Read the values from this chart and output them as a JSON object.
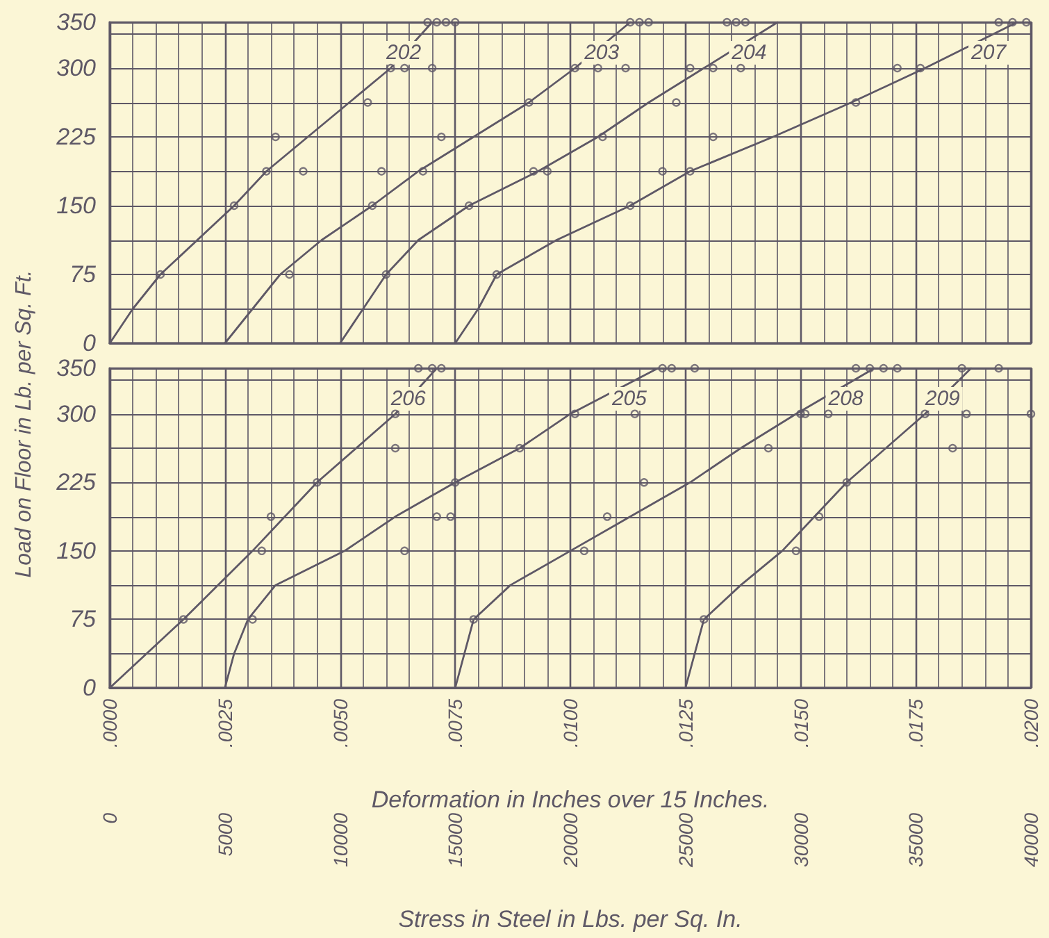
{
  "chart_data": [
    {
      "type": "line",
      "ylabel": "Load on Floor in Lb. per Sq. Ft.",
      "xlim": [
        0,
        0.02
      ],
      "xticks": [
        {
          "value": 0,
          "label": null
        },
        {
          "value": 0.0025,
          "label": null
        },
        {
          "value": 0.005,
          "label": null
        },
        {
          "value": 0.0075,
          "label": null
        },
        {
          "value": 0.01,
          "label": null
        },
        {
          "value": 0.0125,
          "label": null
        },
        {
          "value": 0.015,
          "label": null
        },
        {
          "value": 0.0175,
          "label": null
        },
        {
          "value": 0.02,
          "label": null
        }
      ],
      "ylim": [
        0,
        350
      ],
      "yticks": [
        0,
        75,
        150,
        225,
        300,
        350
      ],
      "tick_labels": "y",
      "grid": true,
      "legend": false,
      "series": [
        {
          "name": "202",
          "marker": "none",
          "color": "#5e5866",
          "x": [
            0,
            0.0005,
            0.0011,
            0.0027,
            0.0034,
            0.0043,
            0.0061,
            0.007
          ],
          "values": [
            0,
            37.5,
            75,
            150,
            187.5,
            225,
            300,
            350
          ]
        },
        {
          "name": "203",
          "marker": "none",
          "color": "#5e5866",
          "x": [
            0.0025,
            0.0031,
            0.0037,
            0.0046,
            0.0057,
            0.0067,
            0.0079,
            0.0091,
            0.0101,
            0.0113
          ],
          "values": [
            0,
            37.5,
            75,
            112.5,
            150,
            187.5,
            225,
            262.5,
            300,
            350
          ]
        },
        {
          "name": "204",
          "marker": "none",
          "color": "#5e5866",
          "x": [
            0.005,
            0.0055,
            0.006,
            0.0067,
            0.0078,
            0.0093,
            0.0106,
            0.0117,
            0.0129,
            0.0145
          ],
          "values": [
            0,
            37.5,
            75,
            112.5,
            150,
            187.5,
            225,
            262.5,
            300,
            350
          ]
        },
        {
          "name": "207",
          "marker": "none",
          "color": "#5e5866",
          "x": [
            0.0075,
            0.008,
            0.0084,
            0.0097,
            0.0113,
            0.0126,
            0.0144,
            0.0161,
            0.0177,
            0.0197
          ],
          "values": [
            0,
            37.5,
            75,
            112.5,
            150,
            187.5,
            225,
            262.5,
            300,
            350
          ]
        },
        {
          "type": "scatter",
          "marker": "circle",
          "color": "#5e5866",
          "x": [
            0.0011,
            0.0027,
            0.0034,
            0.0042,
            0.0036,
            0.0056,
            0.0061,
            0.0064,
            0.007,
            0.0069,
            0.0071,
            0.0073,
            0.0075,
            0.0039,
            0.0057,
            0.0059,
            0.0068,
            0.0072,
            0.0091,
            0.0101,
            0.0106,
            0.0112,
            0.0113,
            0.0115,
            0.0117,
            0.006,
            0.0078,
            0.0092,
            0.0095,
            0.0107,
            0.0123,
            0.0131,
            0.012,
            0.0126,
            0.0131,
            0.0137,
            0.0134,
            0.0136,
            0.0138,
            0.0084,
            0.0113,
            0.0126,
            0.0162,
            0.0171,
            0.0176,
            0.0193,
            0.0196,
            0.0199
          ],
          "values": [
            75,
            150,
            187.5,
            187.5,
            225,
            262.5,
            300,
            300,
            300,
            350,
            350,
            350,
            350,
            75,
            150,
            187.5,
            187.5,
            225,
            262.5,
            300,
            300,
            300,
            350,
            350,
            350,
            75,
            150,
            187.5,
            187.5,
            225,
            262.5,
            225,
            187.5,
            300,
            300,
            300,
            350,
            350,
            350,
            75,
            150,
            187.5,
            262.5,
            300,
            300,
            350,
            350,
            350
          ]
        }
      ]
    },
    {
      "type": "line",
      "xlabel": "Deformation in Inches over 15 Inches.",
      "x2label": "Stress in Steel in Lbs. per Sq. In.",
      "xlim": [
        0,
        0.02
      ],
      "xticks": [
        {
          "value": 0,
          "label": ".0000"
        },
        {
          "value": 0.0025,
          "label": ".0025"
        },
        {
          "value": 0.005,
          "label": ".0050"
        },
        {
          "value": 0.0075,
          "label": ".0075"
        },
        {
          "value": 0.01,
          "label": ".0100"
        },
        {
          "value": 0.0125,
          "label": ".0125"
        },
        {
          "value": 0.015,
          "label": ".0150"
        },
        {
          "value": 0.0175,
          "label": ".0175"
        },
        {
          "value": 0.02,
          "label": ".0200"
        }
      ],
      "x2lim": [
        0,
        40000
      ],
      "x2ticks": [
        0,
        5000,
        10000,
        15000,
        20000,
        25000,
        30000,
        35000,
        40000
      ],
      "ylim": [
        0,
        350
      ],
      "yticks": [
        0,
        75,
        150,
        225,
        300,
        350
      ],
      "grid": true,
      "legend": false,
      "series": [
        {
          "name": "206",
          "marker": "none",
          "color": "#5e5866",
          "x": [
            0,
            0.0016,
            0.0031,
            0.0045,
            0.0062,
            0.0071
          ],
          "values": [
            0,
            75,
            150,
            225,
            300,
            350
          ]
        },
        {
          "name": "205",
          "marker": "none",
          "color": "#5e5866",
          "x": [
            0.0025,
            0.0027,
            0.003,
            0.0036,
            0.0051,
            0.0062,
            0.0075,
            0.0089,
            0.01,
            0.0119
          ],
          "values": [
            0,
            37.5,
            75,
            112.5,
            150,
            187.5,
            225,
            262.5,
            300,
            350
          ]
        },
        {
          "name": "208",
          "marker": "none",
          "color": "#5e5866",
          "x": [
            0.0075,
            0.0077,
            0.0079,
            0.0087,
            0.01,
            0.0113,
            0.0126,
            0.0137,
            0.0149,
            0.0166
          ],
          "values": [
            0,
            37.5,
            75,
            112.5,
            150,
            187.5,
            225,
            262.5,
            300,
            350
          ]
        },
        {
          "name": "209",
          "marker": "none",
          "color": "#5e5866",
          "x": [
            0.0125,
            0.0127,
            0.0129,
            0.0137,
            0.0146,
            0.0153,
            0.016,
            0.0177,
            0.0187
          ],
          "values": [
            0,
            37.5,
            75,
            112.5,
            150,
            187.5,
            225,
            300,
            350
          ]
        },
        {
          "type": "scatter",
          "marker": "circle",
          "color": "#5e5866",
          "x": [
            0.0016,
            0.0033,
            0.0035,
            0.0045,
            0.0062,
            0.0062,
            0.0067,
            0.007,
            0.0072,
            0.0031,
            0.0064,
            0.0071,
            0.0074,
            0.0075,
            0.0089,
            0.0101,
            0.0114,
            0.012,
            0.0122,
            0.0127,
            0.0079,
            0.0103,
            0.0108,
            0.0116,
            0.0143,
            0.015,
            0.0151,
            0.0156,
            0.0162,
            0.0165,
            0.0168,
            0.0171,
            0.0129,
            0.0149,
            0.0154,
            0.016,
            0.0177,
            0.0183,
            0.0186,
            0.02,
            0.0185,
            0.0193
          ],
          "values": [
            75,
            150,
            187.5,
            225,
            262.5,
            300,
            350,
            350,
            350,
            75,
            150,
            187.5,
            187.5,
            225,
            262.5,
            300,
            300,
            350,
            350,
            350,
            75,
            150,
            187.5,
            225,
            262.5,
            300,
            300,
            300,
            350,
            350,
            350,
            350,
            75,
            150,
            187.5,
            225,
            300,
            262.5,
            300,
            300,
            350,
            350
          ]
        }
      ]
    }
  ]
}
